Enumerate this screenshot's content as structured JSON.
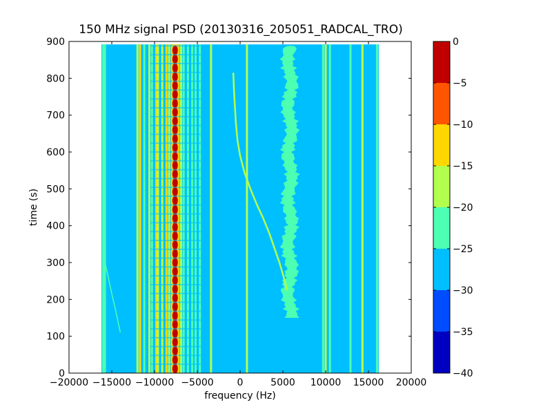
{
  "chart_data": {
    "type": "heatmap",
    "title": "150 MHz signal PSD (20130316_205051_RADCAL_TRO)",
    "xlabel": "frequency (Hz)",
    "ylabel": "time (s)",
    "xlim": [
      -20000,
      20000
    ],
    "ylim": [
      0,
      900
    ],
    "xticks": [
      -20000,
      -15000,
      -10000,
      -5000,
      0,
      5000,
      10000,
      15000,
      20000
    ],
    "yticks": [
      0,
      100,
      200,
      300,
      400,
      500,
      600,
      700,
      800,
      900
    ],
    "data_extent": {
      "x": [
        -16200,
        16200
      ],
      "y": [
        0,
        892
      ]
    },
    "background_level": -27.5,
    "colorbar": {
      "min": -40,
      "max": 0,
      "ticks": [
        0,
        -5,
        -10,
        -15,
        -20,
        -25,
        -30,
        -35,
        -40
      ],
      "levels": [
        {
          "from": -40,
          "to": -35,
          "color": "#0000c0"
        },
        {
          "from": -35,
          "to": -30,
          "color": "#004cff"
        },
        {
          "from": -30,
          "to": -25,
          "color": "#00bfff"
        },
        {
          "from": -25,
          "to": -20,
          "color": "#4dffb3"
        },
        {
          "from": -20,
          "to": -15,
          "color": "#b3ff4d"
        },
        {
          "from": -15,
          "to": -10,
          "color": "#ffd700"
        },
        {
          "from": -10,
          "to": -5,
          "color": "#ff5500"
        },
        {
          "from": -5,
          "to": 0,
          "color": "#c00000"
        }
      ]
    },
    "features": {
      "vertical_lines": [
        {
          "x": -16000,
          "level": -22.5
        },
        {
          "x": -15800,
          "level": -22.5
        },
        {
          "x": -12000,
          "level": -17.5
        },
        {
          "x": -11700,
          "level": -12.5
        },
        {
          "x": -11200,
          "level": -22.5
        },
        {
          "x": -10600,
          "level": -17.5
        },
        {
          "x": -10300,
          "level": -22.5
        },
        {
          "x": -9800,
          "level": -12.5
        },
        {
          "x": -9600,
          "level": -17.5
        },
        {
          "x": -9100,
          "level": -17.5
        },
        {
          "x": -8600,
          "level": -12.5
        },
        {
          "x": -8300,
          "level": -17.5
        },
        {
          "x": -7900,
          "level": -12.5
        },
        {
          "x": -7200,
          "level": -12.5
        },
        {
          "x": -6900,
          "level": -17.5
        },
        {
          "x": -6600,
          "level": -22.5
        },
        {
          "x": -6100,
          "level": -22.5
        },
        {
          "x": -5600,
          "level": -22.5
        },
        {
          "x": -5200,
          "level": -22.5
        },
        {
          "x": -4700,
          "level": -22.5
        },
        {
          "x": -3400,
          "level": -17.5
        },
        {
          "x": 800,
          "level": -17.5
        },
        {
          "x": 9700,
          "level": -22.5
        },
        {
          "x": 10000,
          "level": -17.5
        },
        {
          "x": 10500,
          "level": -22.5
        },
        {
          "x": 12900,
          "level": -22.5
        },
        {
          "x": 14300,
          "level": -17.5
        },
        {
          "x": 16000,
          "level": -22.5
        }
      ],
      "hot_band": {
        "x_center": -7600,
        "half_width": 500,
        "level": -2.5,
        "period_s": 24
      },
      "noise_band": {
        "x_center": 5800,
        "half_width": 900,
        "y_range": [
          150,
          892
        ],
        "level": -22.5
      },
      "drifting_tone": {
        "level": -17.5,
        "points": [
          [
            -800,
            815
          ],
          [
            -700,
            760
          ],
          [
            -500,
            680
          ],
          [
            -300,
            630
          ],
          [
            0,
            590
          ],
          [
            500,
            545
          ],
          [
            1200,
            500
          ],
          [
            2000,
            455
          ],
          [
            2700,
            420
          ],
          [
            3400,
            380
          ],
          [
            4000,
            340
          ],
          [
            4600,
            300
          ],
          [
            5100,
            260
          ],
          [
            5500,
            225
          ]
        ]
      },
      "faint_slope": {
        "level": -22.5,
        "points": [
          [
            -16000,
            320
          ],
          [
            -15500,
            270
          ],
          [
            -15000,
            215
          ],
          [
            -14500,
            165
          ],
          [
            -14000,
            110
          ]
        ]
      }
    }
  }
}
